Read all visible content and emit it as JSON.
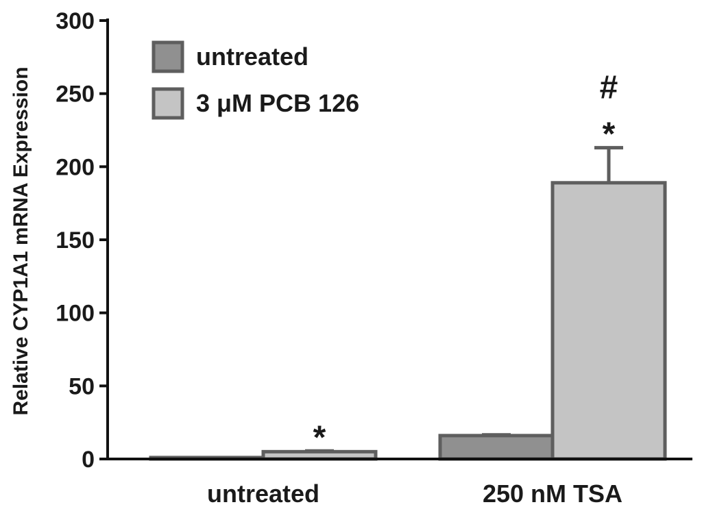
{
  "chart_data": {
    "type": "bar",
    "title": "",
    "xlabel": "",
    "ylabel": "Relative CYP1A1 mRNA Expression",
    "ylim": [
      0,
      300
    ],
    "yticks": [
      0,
      50,
      100,
      150,
      200,
      250,
      300
    ],
    "categories": [
      "untreated",
      "250 nM TSA"
    ],
    "series": [
      {
        "name": "untreated",
        "values": [
          1,
          16
        ],
        "errors": [
          0,
          0.5
        ],
        "color": "#909090"
      },
      {
        "name": "3 μM PCB 126",
        "values": [
          5,
          189
        ],
        "errors": [
          0.5,
          24
        ],
        "color": "#c4c4c4"
      }
    ],
    "annotations": [
      {
        "category": "untreated",
        "series": "3 μM PCB 126",
        "text": "*"
      },
      {
        "category": "250 nM TSA",
        "series": "3 μM PCB 126",
        "text": "*"
      },
      {
        "category": "250 nM TSA",
        "series": "3 μM PCB 126",
        "text": "#"
      }
    ],
    "legend_position": "top-left",
    "grid": false,
    "bar_edge_color": "#5e5e5e",
    "axis_color": "#111111"
  }
}
